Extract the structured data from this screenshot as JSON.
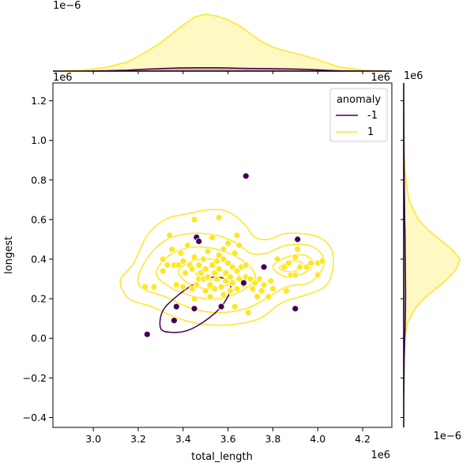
{
  "chart_data": {
    "type": "scatter",
    "xlabel": "total_length",
    "ylabel": "longest",
    "x_offset_label": "1e6",
    "y_offset_label": "1e6",
    "top_marginal_offset_label": "1e−6",
    "top_marginal_right_label": "1e6",
    "right_marginal_top_label": "1e6",
    "right_marginal_offset_label": "1e−6",
    "xlim": [
      2.82,
      4.33
    ],
    "ylim": [
      -0.45,
      1.29
    ],
    "x_ticks": [
      3.0,
      3.2,
      3.4,
      3.6,
      3.8,
      4.0,
      4.2
    ],
    "x_tick_labels": [
      "3.0",
      "3.2",
      "3.4",
      "3.6",
      "3.8",
      "4.0",
      "4.2"
    ],
    "y_ticks": [
      -0.4,
      -0.2,
      0.0,
      0.2,
      0.4,
      0.6,
      0.8,
      1.0,
      1.2
    ],
    "y_tick_labels": [
      "−0.4",
      "−0.2",
      "0.0",
      "0.2",
      "0.4",
      "0.6",
      "0.8",
      "1.0",
      "1.2"
    ],
    "grid": false,
    "legend": {
      "title": "anomaly",
      "placement": "top-right",
      "entries": [
        {
          "label": "-1",
          "color": "#440154"
        },
        {
          "label": "1",
          "color": "#fde725"
        }
      ]
    },
    "series": [
      {
        "name": "-1",
        "color": "#440154",
        "points": [
          [
            3.24,
            0.02
          ],
          [
            3.36,
            0.09
          ],
          [
            3.37,
            0.16
          ],
          [
            3.45,
            0.15
          ],
          [
            3.46,
            0.51
          ],
          [
            3.47,
            0.49
          ],
          [
            3.57,
            0.16
          ],
          [
            3.67,
            0.28
          ],
          [
            3.68,
            0.82
          ],
          [
            3.76,
            0.36
          ],
          [
            3.9,
            0.15
          ],
          [
            3.91,
            0.5
          ]
        ]
      },
      {
        "name": "1",
        "color": "#fde725",
        "points": [
          [
            3.23,
            0.26
          ],
          [
            3.27,
            0.26
          ],
          [
            3.31,
            0.34
          ],
          [
            3.31,
            0.4
          ],
          [
            3.34,
            0.52
          ],
          [
            3.35,
            0.45
          ],
          [
            3.36,
            0.37
          ],
          [
            3.37,
            0.27
          ],
          [
            3.38,
            0.37
          ],
          [
            3.39,
            0.43
          ],
          [
            3.4,
            0.39
          ],
          [
            3.4,
            0.26
          ],
          [
            3.41,
            0.33
          ],
          [
            3.42,
            0.47
          ],
          [
            3.43,
            0.37
          ],
          [
            3.44,
            0.35
          ],
          [
            3.45,
            0.6
          ],
          [
            3.45,
            0.41
          ],
          [
            3.45,
            0.2
          ],
          [
            3.46,
            0.27
          ],
          [
            3.47,
            0.37
          ],
          [
            3.47,
            0.3
          ],
          [
            3.48,
            0.33
          ],
          [
            3.49,
            0.4
          ],
          [
            3.49,
            0.3
          ],
          [
            3.5,
            0.24
          ],
          [
            3.5,
            0.35
          ],
          [
            3.51,
            0.44
          ],
          [
            3.51,
            0.31
          ],
          [
            3.52,
            0.21
          ],
          [
            3.52,
            0.27
          ],
          [
            3.53,
            0.37
          ],
          [
            3.54,
            0.33
          ],
          [
            3.54,
            0.25
          ],
          [
            3.55,
            0.39
          ],
          [
            3.55,
            0.3
          ],
          [
            3.56,
            0.61
          ],
          [
            3.56,
            0.42
          ],
          [
            3.56,
            0.35
          ],
          [
            3.57,
            0.26
          ],
          [
            3.58,
            0.22
          ],
          [
            3.58,
            0.4
          ],
          [
            3.59,
            0.33
          ],
          [
            3.59,
            0.29
          ],
          [
            3.6,
            0.48
          ],
          [
            3.6,
            0.38
          ],
          [
            3.61,
            0.24
          ],
          [
            3.61,
            0.31
          ],
          [
            3.62,
            0.36
          ],
          [
            3.62,
            0.28
          ],
          [
            3.63,
            0.43
          ],
          [
            3.63,
            0.16
          ],
          [
            3.64,
            0.52
          ],
          [
            3.64,
            0.34
          ],
          [
            3.64,
            0.25
          ],
          [
            3.65,
            0.3
          ],
          [
            3.65,
            0.47
          ],
          [
            3.66,
            0.36
          ],
          [
            3.67,
            0.27
          ],
          [
            3.68,
            0.31
          ],
          [
            3.68,
            0.37
          ],
          [
            3.69,
            0.13
          ],
          [
            3.7,
            0.3
          ],
          [
            3.71,
            0.25
          ],
          [
            3.72,
            0.28
          ],
          [
            3.73,
            0.21
          ],
          [
            3.74,
            0.3
          ],
          [
            3.75,
            0.24
          ],
          [
            3.76,
            0.27
          ],
          [
            3.78,
            0.21
          ],
          [
            3.8,
            0.25
          ],
          [
            3.82,
            0.4
          ],
          [
            3.85,
            0.36
          ],
          [
            3.87,
            0.38
          ],
          [
            3.88,
            0.32
          ],
          [
            3.9,
            0.32
          ],
          [
            3.9,
            0.41
          ],
          [
            3.91,
            0.45
          ],
          [
            3.92,
            0.36
          ],
          [
            3.95,
            0.36
          ],
          [
            3.97,
            0.38
          ],
          [
            4.0,
            0.32
          ],
          [
            4.0,
            0.38
          ],
          [
            4.02,
            0.39
          ],
          [
            3.86,
            0.24
          ],
          [
            3.79,
            0.29
          ],
          [
            3.44,
            0.25
          ],
          [
            3.33,
            0.37
          ],
          [
            3.53,
            0.51
          ],
          [
            3.58,
            0.45
          ]
        ]
      }
    ],
    "kde_contours": [
      {
        "name": "1",
        "color": "#fde725",
        "levels": [
          [
            [
              3.12,
              0.29
            ],
            [
              3.18,
              0.38
            ],
            [
              3.24,
              0.52
            ],
            [
              3.32,
              0.6
            ],
            [
              3.42,
              0.63
            ],
            [
              3.52,
              0.65
            ],
            [
              3.6,
              0.64
            ],
            [
              3.67,
              0.58
            ],
            [
              3.72,
              0.51
            ],
            [
              3.78,
              0.5
            ],
            [
              3.86,
              0.53
            ],
            [
              3.98,
              0.52
            ],
            [
              4.05,
              0.47
            ],
            [
              4.07,
              0.38
            ],
            [
              4.04,
              0.27
            ],
            [
              3.95,
              0.22
            ],
            [
              3.84,
              0.18
            ],
            [
              3.74,
              0.1
            ],
            [
              3.62,
              0.07
            ],
            [
              3.5,
              0.07
            ],
            [
              3.38,
              0.1
            ],
            [
              3.26,
              0.16
            ],
            [
              3.16,
              0.2
            ],
            [
              3.12,
              0.29
            ]
          ],
          [
            [
              3.2,
              0.31
            ],
            [
              3.25,
              0.42
            ],
            [
              3.33,
              0.5
            ],
            [
              3.44,
              0.53
            ],
            [
              3.55,
              0.52
            ],
            [
              3.64,
              0.48
            ],
            [
              3.7,
              0.43
            ],
            [
              3.77,
              0.43
            ],
            [
              3.86,
              0.47
            ],
            [
              3.96,
              0.47
            ],
            [
              4.02,
              0.42
            ],
            [
              4.02,
              0.35
            ],
            [
              3.96,
              0.28
            ],
            [
              3.86,
              0.26
            ],
            [
              3.77,
              0.2
            ],
            [
              3.68,
              0.15
            ],
            [
              3.56,
              0.13
            ],
            [
              3.44,
              0.15
            ],
            [
              3.32,
              0.21
            ],
            [
              3.22,
              0.25
            ],
            [
              3.2,
              0.31
            ]
          ],
          [
            [
              3.28,
              0.33
            ],
            [
              3.34,
              0.42
            ],
            [
              3.44,
              0.46
            ],
            [
              3.55,
              0.45
            ],
            [
              3.64,
              0.41
            ],
            [
              3.7,
              0.36
            ],
            [
              3.72,
              0.3
            ],
            [
              3.66,
              0.24
            ],
            [
              3.56,
              0.2
            ],
            [
              3.45,
              0.21
            ],
            [
              3.34,
              0.26
            ],
            [
              3.28,
              0.33
            ]
          ],
          [
            [
              3.38,
              0.34
            ],
            [
              3.44,
              0.39
            ],
            [
              3.53,
              0.4
            ],
            [
              3.61,
              0.37
            ],
            [
              3.65,
              0.32
            ],
            [
              3.6,
              0.27
            ],
            [
              3.51,
              0.25
            ],
            [
              3.42,
              0.28
            ],
            [
              3.38,
              0.34
            ]
          ],
          [
            [
              3.46,
              0.33
            ],
            [
              3.52,
              0.36
            ],
            [
              3.58,
              0.34
            ],
            [
              3.56,
              0.3
            ],
            [
              3.49,
              0.3
            ],
            [
              3.46,
              0.33
            ]
          ],
          [
            [
              3.8,
              0.36
            ],
            [
              3.86,
              0.41
            ],
            [
              3.94,
              0.42
            ],
            [
              3.98,
              0.38
            ],
            [
              3.94,
              0.33
            ],
            [
              3.86,
              0.31
            ],
            [
              3.8,
              0.36
            ]
          ],
          [
            [
              3.83,
              0.36
            ],
            [
              3.88,
              0.39
            ],
            [
              3.93,
              0.38
            ],
            [
              3.9,
              0.34
            ],
            [
              3.85,
              0.34
            ],
            [
              3.83,
              0.36
            ]
          ]
        ]
      },
      {
        "name": "-1",
        "color": "#440154",
        "levels": [
          [
            [
              3.3,
              0.05
            ],
            [
              3.35,
              0.03
            ],
            [
              3.42,
              0.04
            ],
            [
              3.5,
              0.09
            ],
            [
              3.57,
              0.16
            ],
            [
              3.61,
              0.24
            ],
            [
              3.6,
              0.29
            ],
            [
              3.54,
              0.31
            ],
            [
              3.46,
              0.28
            ],
            [
              3.38,
              0.22
            ],
            [
              3.31,
              0.14
            ],
            [
              3.3,
              0.05
            ]
          ]
        ]
      }
    ],
    "marginal_x": {
      "x": [
        2.82,
        2.95,
        3.05,
        3.15,
        3.22,
        3.3,
        3.38,
        3.45,
        3.5,
        3.55,
        3.6,
        3.65,
        3.7,
        3.75,
        3.8,
        3.85,
        3.9,
        3.95,
        4.0,
        4.05,
        4.1,
        4.2,
        4.33
      ],
      "series": [
        {
          "name": "1",
          "color": "#fde725",
          "values": [
            0.0,
            0.02,
            0.06,
            0.16,
            0.3,
            0.5,
            0.75,
            0.95,
            1.0,
            0.97,
            0.9,
            0.8,
            0.66,
            0.52,
            0.42,
            0.36,
            0.31,
            0.26,
            0.2,
            0.13,
            0.07,
            0.02,
            0.0
          ]
        },
        {
          "name": "-1",
          "color": "#440154",
          "values": [
            0.0,
            0.0,
            0.005,
            0.015,
            0.03,
            0.045,
            0.055,
            0.06,
            0.06,
            0.058,
            0.055,
            0.05,
            0.047,
            0.045,
            0.043,
            0.04,
            0.036,
            0.03,
            0.022,
            0.012,
            0.006,
            0.001,
            0.0
          ]
        }
      ]
    },
    "marginal_y": {
      "y": [
        -0.45,
        -0.3,
        -0.1,
        0.0,
        0.08,
        0.15,
        0.2,
        0.25,
        0.3,
        0.35,
        0.4,
        0.45,
        0.5,
        0.55,
        0.6,
        0.7,
        0.85,
        1.0,
        1.29
      ],
      "series": [
        {
          "name": "1",
          "color": "#fde725",
          "values": [
            0.0,
            0.0,
            0.005,
            0.02,
            0.07,
            0.2,
            0.36,
            0.57,
            0.78,
            0.94,
            1.0,
            0.86,
            0.64,
            0.43,
            0.26,
            0.09,
            0.02,
            0.003,
            0.0
          ]
        },
        {
          "name": "-1",
          "color": "#440154",
          "values": [
            0.0,
            0.002,
            0.01,
            0.02,
            0.028,
            0.032,
            0.034,
            0.034,
            0.033,
            0.031,
            0.029,
            0.027,
            0.025,
            0.022,
            0.019,
            0.014,
            0.008,
            0.004,
            0.0
          ]
        }
      ]
    }
  }
}
